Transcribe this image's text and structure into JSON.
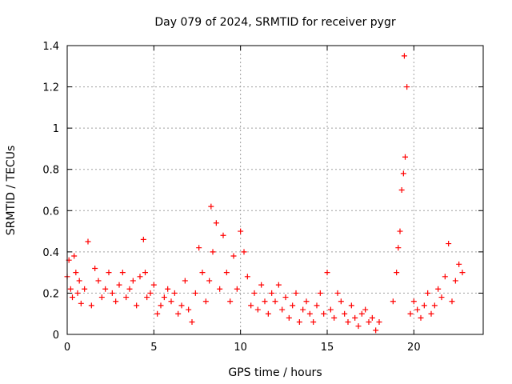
{
  "chart_data": {
    "type": "scatter",
    "title": "Day 079 of 2024, SRMTID for receiver pygr",
    "xlabel": "GPS time / hours",
    "ylabel": "SRMTID / TECUs",
    "xlim": [
      0,
      24
    ],
    "ylim": [
      0,
      1.4
    ],
    "x_ticks": [
      0,
      5,
      10,
      15,
      20
    ],
    "x_tick_labels": [
      "0",
      "5",
      "10",
      "15",
      "20"
    ],
    "y_ticks": [
      0,
      0.2,
      0.4,
      0.6,
      0.8,
      1.0,
      1.2,
      1.4
    ],
    "y_tick_labels": [
      "0",
      "0.2",
      "0.4",
      "0.6",
      "0.8",
      "1",
      "1.2",
      "1.4"
    ],
    "grid": true,
    "marker": "+",
    "series": [
      {
        "name": "SRMTID",
        "color": "#ff0000",
        "x": [
          0.0,
          0.1,
          0.2,
          0.3,
          0.4,
          0.5,
          0.6,
          0.7,
          0.8,
          1.0,
          1.2,
          1.4,
          1.6,
          1.8,
          2.0,
          2.2,
          2.4,
          2.6,
          2.8,
          3.0,
          3.2,
          3.4,
          3.6,
          3.8,
          4.0,
          4.2,
          4.4,
          4.5,
          4.6,
          4.8,
          5.0,
          5.2,
          5.4,
          5.6,
          5.8,
          6.0,
          6.2,
          6.4,
          6.6,
          6.8,
          7.0,
          7.2,
          7.4,
          7.6,
          7.8,
          8.0,
          8.2,
          8.3,
          8.4,
          8.6,
          8.8,
          9.0,
          9.2,
          9.4,
          9.6,
          9.8,
          10.0,
          10.2,
          10.4,
          10.6,
          10.8,
          11.0,
          11.2,
          11.4,
          11.6,
          11.8,
          12.0,
          12.2,
          12.4,
          12.6,
          12.8,
          13.0,
          13.2,
          13.4,
          13.6,
          13.8,
          14.0,
          14.2,
          14.4,
          14.6,
          14.8,
          15.0,
          15.2,
          15.4,
          15.6,
          15.8,
          16.0,
          16.2,
          16.4,
          16.6,
          16.8,
          17.0,
          17.2,
          17.4,
          17.6,
          17.8,
          18.0,
          18.8,
          19.0,
          19.1,
          19.2,
          19.3,
          19.4,
          19.45,
          19.5,
          19.6,
          19.8,
          20.0,
          20.2,
          20.4,
          20.6,
          20.8,
          21.0,
          21.2,
          21.4,
          21.6,
          21.8,
          22.0,
          22.2,
          22.4,
          22.6,
          22.8
        ],
        "y": [
          0.28,
          0.36,
          0.22,
          0.18,
          0.38,
          0.3,
          0.2,
          0.26,
          0.15,
          0.22,
          0.45,
          0.14,
          0.32,
          0.26,
          0.18,
          0.22,
          0.3,
          0.2,
          0.16,
          0.24,
          0.3,
          0.18,
          0.22,
          0.26,
          0.14,
          0.28,
          0.46,
          0.3,
          0.18,
          0.2,
          0.24,
          0.1,
          0.14,
          0.18,
          0.22,
          0.16,
          0.2,
          0.1,
          0.14,
          0.26,
          0.12,
          0.06,
          0.2,
          0.42,
          0.3,
          0.16,
          0.26,
          0.62,
          0.4,
          0.54,
          0.22,
          0.48,
          0.3,
          0.16,
          0.38,
          0.22,
          0.5,
          0.4,
          0.28,
          0.14,
          0.2,
          0.12,
          0.24,
          0.16,
          0.1,
          0.2,
          0.16,
          0.24,
          0.12,
          0.18,
          0.08,
          0.14,
          0.2,
          0.06,
          0.12,
          0.16,
          0.1,
          0.06,
          0.14,
          0.2,
          0.1,
          0.3,
          0.12,
          0.08,
          0.2,
          0.16,
          0.1,
          0.06,
          0.14,
          0.08,
          0.04,
          0.1,
          0.12,
          0.06,
          0.08,
          0.02,
          0.06,
          0.16,
          0.3,
          0.42,
          0.5,
          0.7,
          0.78,
          1.35,
          0.86,
          1.2,
          0.1,
          0.16,
          0.12,
          0.08,
          0.14,
          0.2,
          0.1,
          0.14,
          0.22,
          0.18,
          0.28,
          0.44,
          0.16,
          0.26,
          0.34,
          0.3
        ]
      }
    ]
  }
}
